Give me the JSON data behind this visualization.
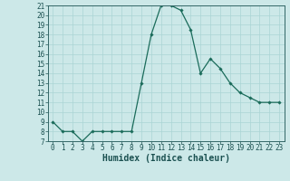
{
  "xlabel": "Humidex (Indice chaleur)",
  "x": [
    0,
    1,
    2,
    3,
    4,
    5,
    6,
    7,
    8,
    9,
    10,
    11,
    12,
    13,
    14,
    15,
    16,
    17,
    18,
    19,
    20,
    21,
    22,
    23
  ],
  "y": [
    9,
    8,
    8,
    7,
    8,
    8,
    8,
    8,
    8,
    13,
    18,
    21,
    21,
    20.5,
    18.5,
    14,
    15.5,
    14.5,
    13,
    12,
    11.5,
    11,
    11,
    11
  ],
  "ylim": [
    7,
    21
  ],
  "xlim": [
    -0.5,
    23.5
  ],
  "yticks": [
    7,
    8,
    9,
    10,
    11,
    12,
    13,
    14,
    15,
    16,
    17,
    18,
    19,
    20,
    21
  ],
  "xticks": [
    0,
    1,
    2,
    3,
    4,
    5,
    6,
    7,
    8,
    9,
    10,
    11,
    12,
    13,
    14,
    15,
    16,
    17,
    18,
    19,
    20,
    21,
    22,
    23
  ],
  "line_color": "#1a6b5a",
  "marker": "D",
  "marker_size": 1.8,
  "bg_color": "#cce8e8",
  "grid_color": "#aad4d4",
  "tick_fontsize": 5.5,
  "xlabel_fontsize": 7,
  "spine_color": "#336666"
}
